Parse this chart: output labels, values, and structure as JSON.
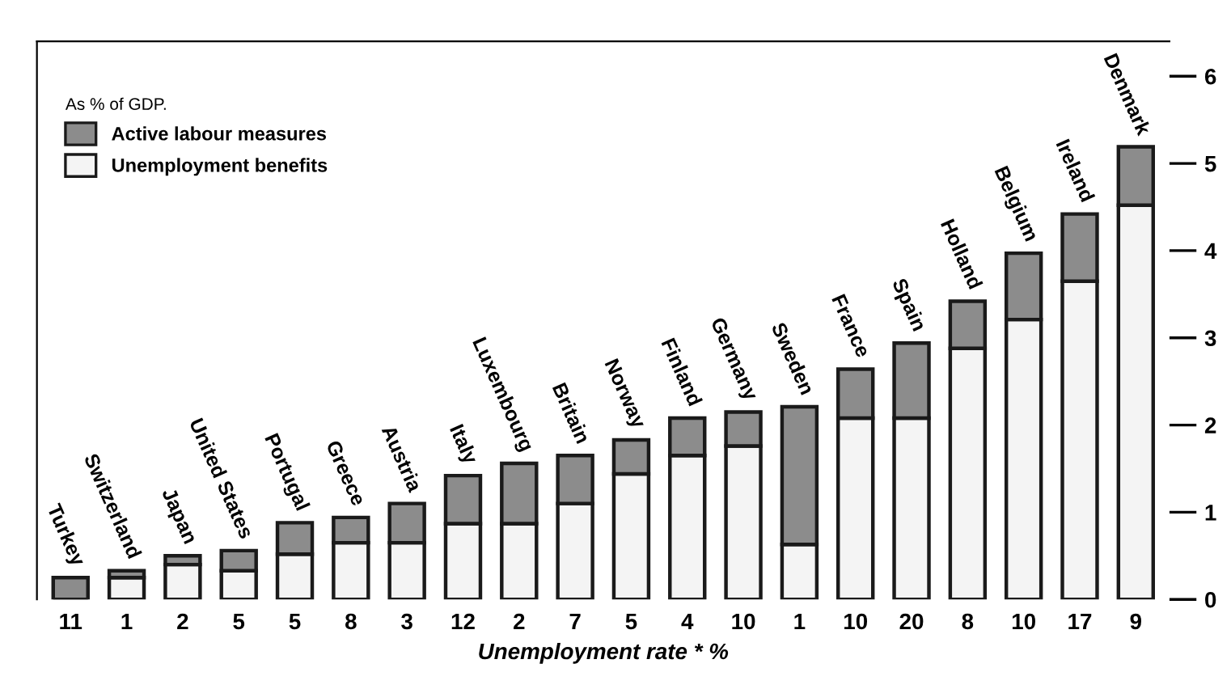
{
  "chart_data": {
    "type": "bar",
    "stacked": true,
    "legend_title": "As % of GDP.",
    "legend": "top left",
    "xlabel": "Unemployment rate * %",
    "categories": [
      "11",
      "1",
      "2",
      "5",
      "5",
      "8",
      "3",
      "12",
      "2",
      "7",
      "5",
      "4",
      "10",
      "1",
      "10",
      "20",
      "8",
      "10",
      "17",
      "9"
    ],
    "series": [
      {
        "name": "Unemployment benefits",
        "color": "#f4f4f4",
        "values": [
          0,
          0.25,
          0.4,
          0.33,
          0.52,
          0.65,
          0.65,
          0.87,
          0.87,
          1.1,
          1.44,
          1.65,
          1.76,
          0.63,
          2.08,
          2.08,
          2.88,
          3.21,
          3.65,
          4.52
        ]
      },
      {
        "name": "Active labour measures",
        "color": "#8c8c8c",
        "values": [
          0.25,
          0.08,
          0.1,
          0.23,
          0.36,
          0.29,
          0.45,
          0.55,
          0.69,
          0.55,
          0.39,
          0.43,
          0.39,
          1.58,
          0.56,
          0.86,
          0.54,
          0.76,
          0.77,
          0.67
        ],
        "value_labels": [
          "Turkey",
          "Switzerland",
          "Japan",
          "United States",
          "Portugal",
          "Greece",
          "Austria",
          "Italy",
          "Luxembourg",
          "Britain",
          "Norway",
          "Finland",
          "Germany",
          "Sweden",
          "France",
          "Spain",
          "Holland",
          "Belgium",
          "Ireland",
          "Denmark"
        ]
      }
    ],
    "ylim": [
      0,
      6.4
    ],
    "yticks": [
      0,
      1,
      2,
      3,
      4,
      5,
      6
    ]
  }
}
